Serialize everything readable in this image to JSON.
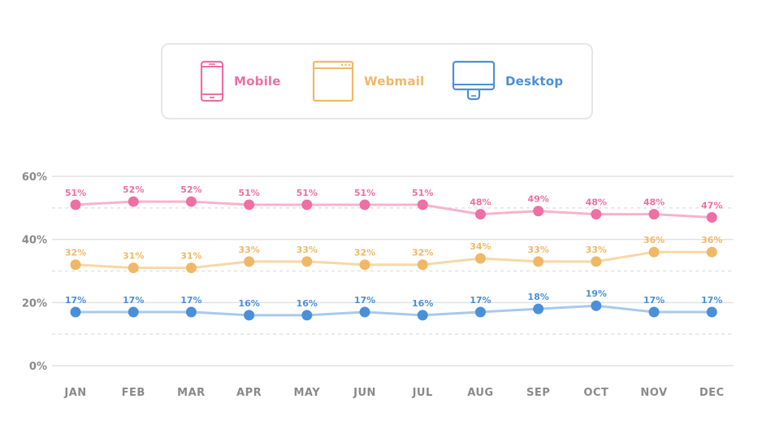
{
  "legend": {
    "items": [
      {
        "label": "Mobile",
        "icon": "mobile-phone-icon",
        "color": "#ee6fa4"
      },
      {
        "label": "Webmail",
        "icon": "browser-window-icon",
        "color": "#f0b866"
      },
      {
        "label": "Desktop",
        "icon": "desktop-monitor-icon",
        "color": "#4a90d9"
      }
    ]
  },
  "chart_data": {
    "type": "line",
    "categories": [
      "JAN",
      "FEB",
      "MAR",
      "APR",
      "MAY",
      "JUN",
      "JUL",
      "AUG",
      "SEP",
      "OCT",
      "NOV",
      "DEC"
    ],
    "yticks": [
      "0%",
      "20%",
      "40%",
      "60%"
    ],
    "ylim": [
      0,
      60
    ],
    "grid": true,
    "legend_position": "top",
    "series": [
      {
        "name": "Mobile",
        "color": "#ee6fa4",
        "line_color": "#f6b3ce",
        "values": [
          51,
          52,
          52,
          51,
          51,
          51,
          51,
          48,
          49,
          48,
          48,
          47
        ],
        "labels": [
          "51%",
          "52%",
          "52%",
          "51%",
          "51%",
          "51%",
          "51%",
          "48%",
          "49%",
          "48%",
          "48%",
          "47%"
        ]
      },
      {
        "name": "Webmail",
        "color": "#f0b866",
        "line_color": "#f7d8a6",
        "values": [
          32,
          31,
          31,
          33,
          33,
          32,
          32,
          34,
          33,
          33,
          36,
          36
        ],
        "labels": [
          "32%",
          "31%",
          "31%",
          "33%",
          "33%",
          "32%",
          "32%",
          "34%",
          "33%",
          "33%",
          "36%",
          "36%"
        ]
      },
      {
        "name": "Desktop",
        "color": "#4a90d9",
        "line_color": "#a9c9ee",
        "values": [
          17,
          17,
          17,
          16,
          16,
          17,
          16,
          17,
          18,
          19,
          17,
          17
        ],
        "labels": [
          "17%",
          "17%",
          "17%",
          "16%",
          "16%",
          "17%",
          "16%",
          "17%",
          "18%",
          "19%",
          "17%",
          "17%"
        ]
      }
    ]
  }
}
